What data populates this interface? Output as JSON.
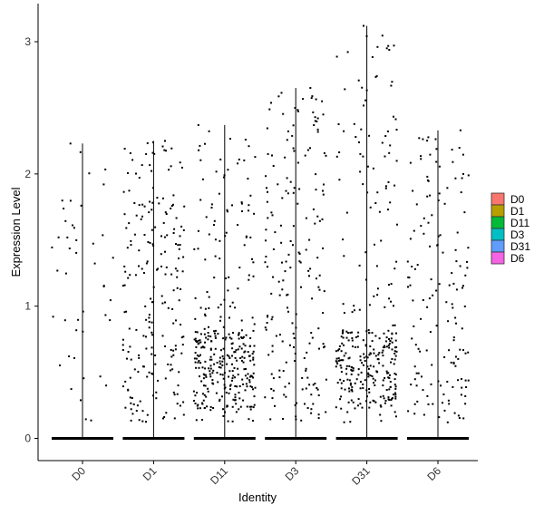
{
  "chart_data": {
    "type": "violin-jitter",
    "xlabel": "Identity",
    "ylabel": "Expression Level",
    "ylim": [
      -0.15,
      3.2
    ],
    "yticks": [
      0,
      1,
      2,
      3
    ],
    "grid": false,
    "legend_position": "right",
    "categories": [
      "D0",
      "D1",
      "D11",
      "D3",
      "D31",
      "D6"
    ],
    "series": [
      {
        "name": "D0",
        "color": "#F8766D",
        "max": 2.23,
        "n_points": 45,
        "dense_low": false
      },
      {
        "name": "D1",
        "color": "#B79F00",
        "max": 2.25,
        "n_points": 210,
        "dense_low": false
      },
      {
        "name": "D11",
        "color": "#00BA38",
        "max": 2.37,
        "n_points": 340,
        "dense_low": true
      },
      {
        "name": "D3",
        "color": "#00BFC4",
        "max": 2.65,
        "n_points": 190,
        "dense_low": false
      },
      {
        "name": "D31",
        "color": "#619CFF",
        "max": 3.12,
        "n_points": 320,
        "dense_low": true
      },
      {
        "name": "D6",
        "color": "#F564E3",
        "max": 2.33,
        "n_points": 150,
        "dense_low": false
      }
    ]
  }
}
